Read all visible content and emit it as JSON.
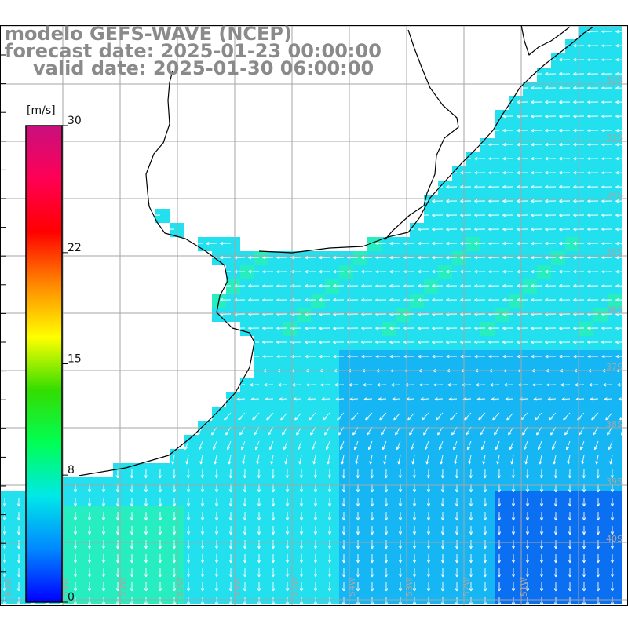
{
  "title": {
    "line1": "modelo GEFS-WAVE (NCEP)",
    "line2": "forecast date: 2025-01-23 00:00:00",
    "line3": "valid date: 2025-01-30 06:00:00"
  },
  "colorbar": {
    "unit": "[m/s]",
    "ticks": [
      {
        "label": "30",
        "value": 30
      },
      {
        "label": "22",
        "value": 22
      },
      {
        "label": "15",
        "value": 15
      },
      {
        "label": "8",
        "value": 8
      },
      {
        "label": "0",
        "value": 0
      }
    ],
    "min": 0,
    "max": 30,
    "colors": [
      "#0000ff",
      "#0088ff",
      "#00e8e8",
      "#00ff55",
      "#33dd00",
      "#ffff00",
      "#ff8800",
      "#ff0000",
      "#ff0055",
      "#c8107e"
    ]
  },
  "grid": {
    "lat_labels": [
      "32S",
      "33S",
      "34S",
      "35S",
      "36S",
      "37S",
      "38S",
      "39S",
      "40S"
    ],
    "lon_labels": [
      "60W",
      "59W",
      "58W",
      "57W",
      "56W",
      "55W",
      "54W",
      "53W",
      "52W",
      "51W"
    ]
  },
  "colors": {
    "ocean_light": "#22e0ee",
    "ocean_mid": "#15b6f3",
    "ocean_deep": "#0b6ff2",
    "ocean_green": "#26eec0",
    "land": "#ffffff",
    "grid_line": "#a6a6a6",
    "coast": "#000000",
    "arrow": "#ffffff",
    "title": "#8a8a8a",
    "axis_label": "#a6a6a6"
  },
  "wind_direction": {
    "upper_ocean": "westward",
    "lower_ocean": "southward"
  }
}
